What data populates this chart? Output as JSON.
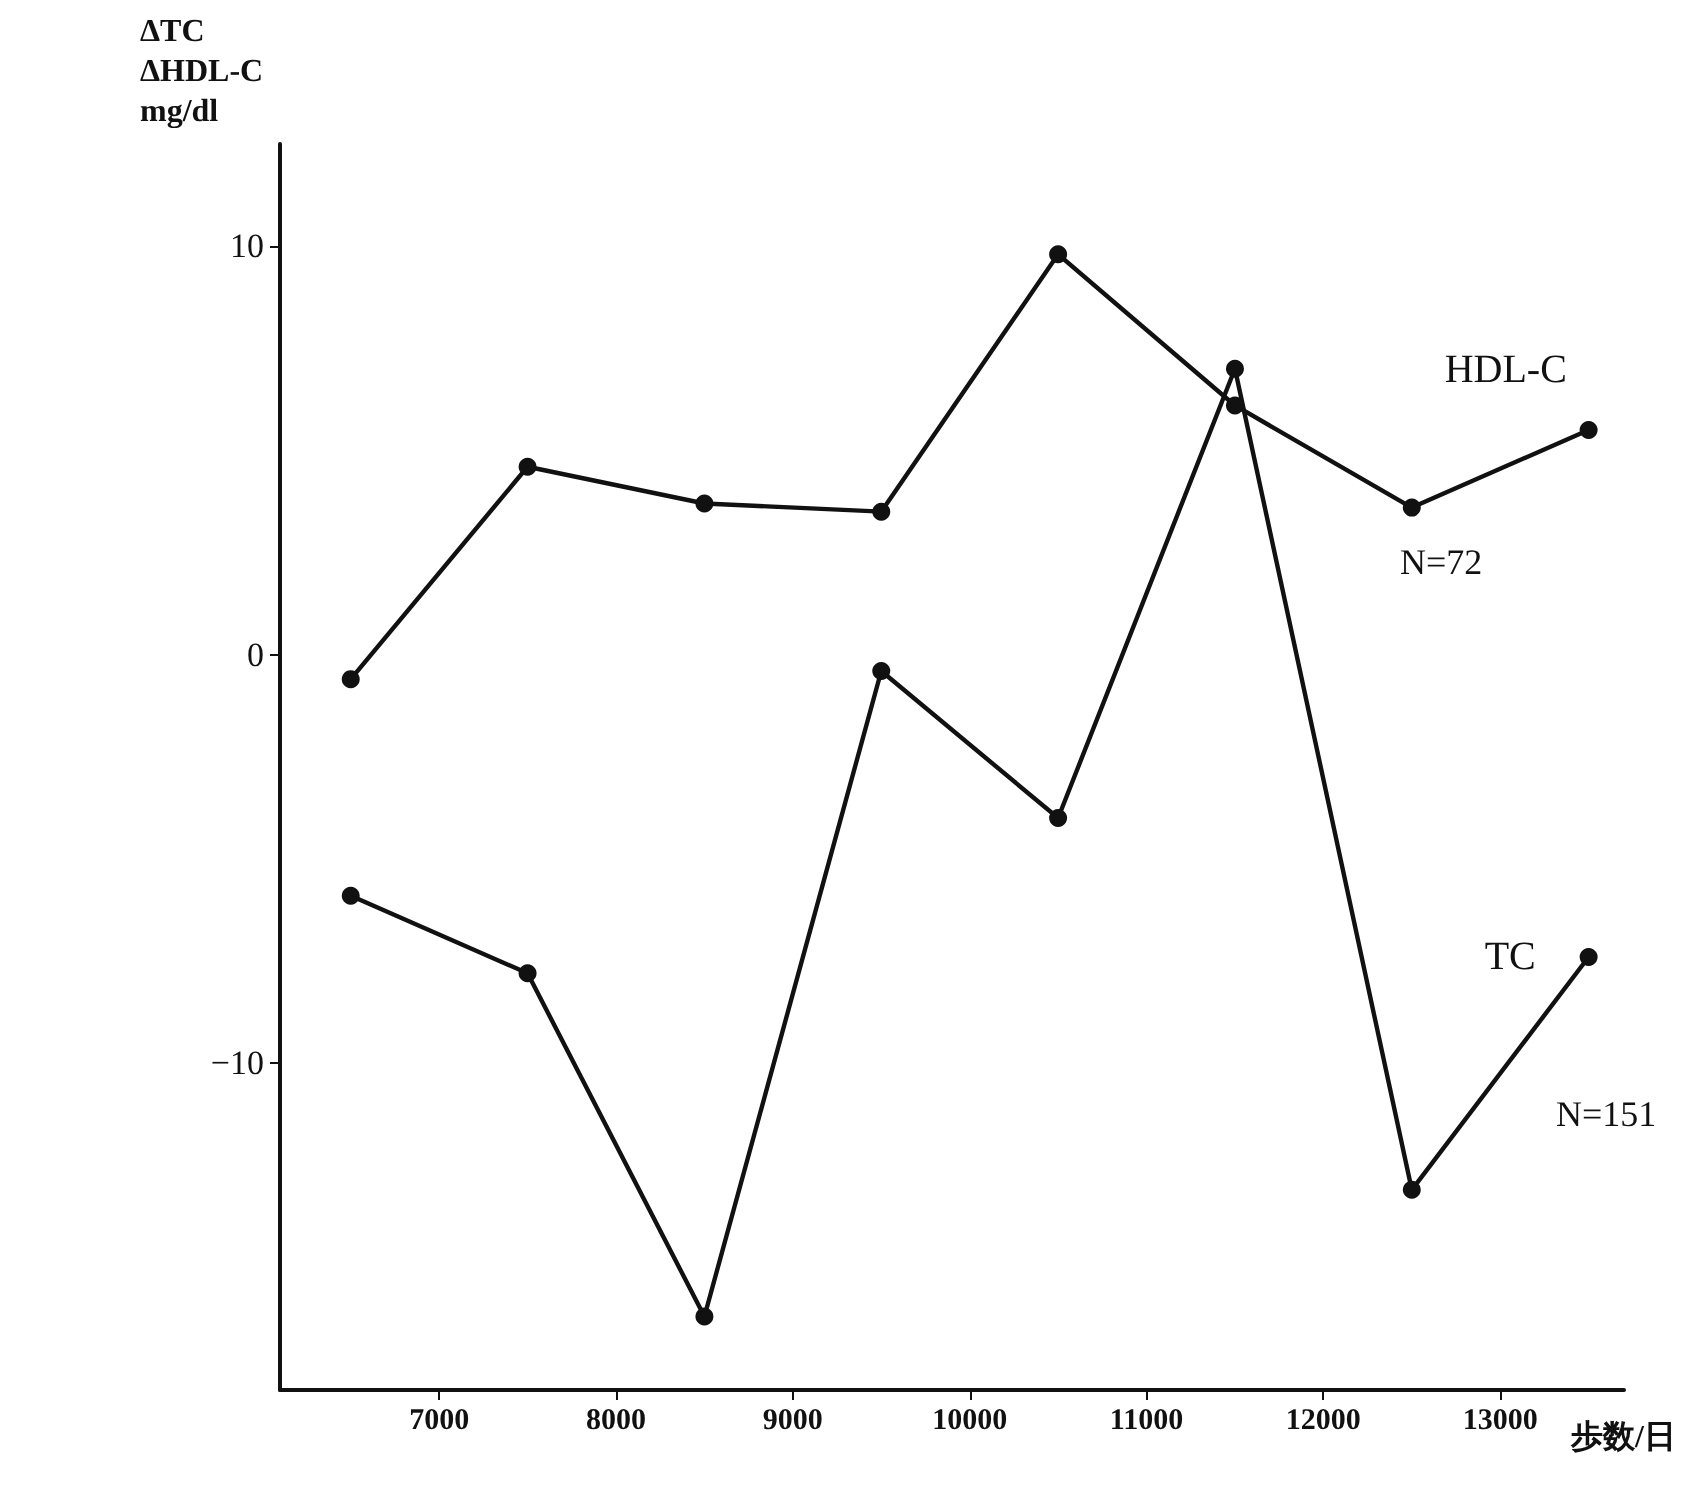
{
  "chart_data": {
    "type": "line",
    "ylabel": "ΔTC\nΔHDL-C\nmg/dl",
    "xlabel": "歩数/日",
    "x": [
      6500,
      7500,
      8500,
      9500,
      10500,
      11500,
      12500,
      13500
    ],
    "series": [
      {
        "name": "HDL-C",
        "color": "#111111",
        "values": [
          -0.6,
          4.6,
          3.7,
          3.5,
          9.8,
          6.1,
          3.6,
          5.5
        ]
      },
      {
        "name": "TC",
        "color": "#111111",
        "values": [
          -5.9,
          -7.8,
          -16.2,
          -0.4,
          -4.0,
          7.0,
          -13.1,
          -7.4
        ]
      }
    ],
    "annotations": [
      "N=72",
      "N=151"
    ],
    "xlim": [
      6100,
      13700
    ],
    "xticks": [
      7000,
      8000,
      9000,
      10000,
      11000,
      12000,
      13000
    ],
    "ylim": [
      -18,
      12.5
    ],
    "yticks": [
      -10,
      0,
      10
    ],
    "grid": false,
    "legend": false,
    "marker": "circle",
    "line_style": "solid"
  }
}
